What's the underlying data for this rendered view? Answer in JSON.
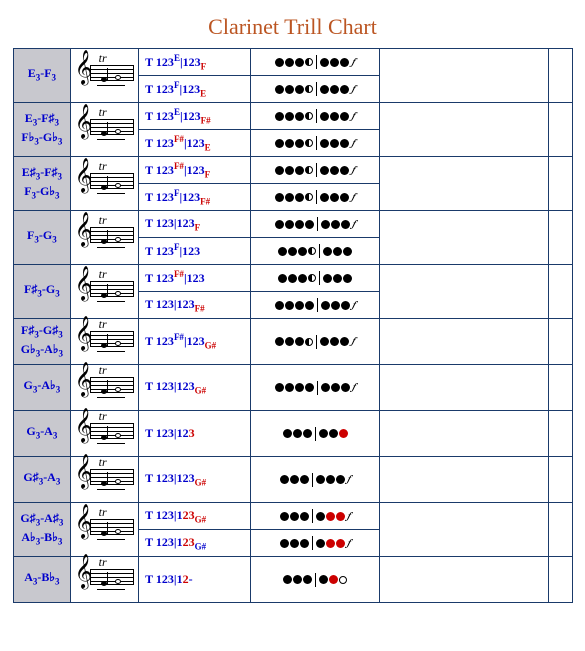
{
  "title": "Clarinet Trill Chart",
  "colors": {
    "title": "#bb5522",
    "border": "#1a3a6a",
    "label_bg": "#c8c8ce",
    "link_blue": "#0000cc",
    "red": "#cc0000",
    "black": "#000000"
  },
  "columns": [
    "note_label",
    "staff",
    "fingering_text",
    "fingering_diagram",
    "blank1",
    "blank2"
  ],
  "rows": [
    {
      "label_html": "E<sub>3</sub>-F<sub>3</sub>",
      "fingerings": [
        {
          "text_html": "T 123<sup>E</sup>|123<sub class='red'>F</sub>",
          "diagram": [
            "dot",
            "dot",
            "dot",
            "half",
            "sep",
            "dot",
            "dot",
            "dot",
            "extra"
          ]
        },
        {
          "text_html": "T 123<sup>F</sup>|123<sub class='red'>E</sub>",
          "diagram": [
            "dot",
            "dot",
            "dot",
            "half",
            "sep",
            "dot",
            "dot",
            "dot",
            "extra"
          ]
        }
      ]
    },
    {
      "label_html": "E<sub>3</sub>-F♯<sub>3</sub><br>F♭<sub>3</sub>-G♭<sub>3</sub>",
      "fingerings": [
        {
          "text_html": "T 123<sup>E</sup>|123<sub class='red'>F#</sub>",
          "diagram": [
            "dot",
            "dot",
            "dot",
            "half",
            "sep",
            "dot",
            "dot",
            "dot",
            "extra"
          ]
        },
        {
          "text_html": "T 123<sup class='red'>F#</sup>|123<sub class='red'>E</sub>",
          "diagram": [
            "dot",
            "dot",
            "dot",
            "half",
            "sep",
            "dot",
            "dot",
            "dot",
            "extra"
          ]
        }
      ]
    },
    {
      "label_html": "E♯<sub>3</sub>-F♯<sub>3</sub><br>F<sub>3</sub>-G♭<sub>3</sub>",
      "fingerings": [
        {
          "text_html": "T 123<sup class='red'>F#</sup>|123<sub class='red'>F</sub>",
          "diagram": [
            "dot",
            "dot",
            "dot",
            "half",
            "sep",
            "dot",
            "dot",
            "dot",
            "extra"
          ]
        },
        {
          "text_html": "T 123<sup>F</sup>|123<sub class='red'>F#</sub>",
          "diagram": [
            "dot",
            "dot",
            "dot",
            "half",
            "sep",
            "dot",
            "dot",
            "dot",
            "extra"
          ]
        }
      ]
    },
    {
      "label_html": "F<sub>3</sub>-G<sub>3</sub>",
      "fingerings": [
        {
          "text_html": "T 123|123<sub class='red'>F</sub>",
          "diagram": [
            "dot",
            "dot",
            "dot",
            "dot",
            "sep",
            "dot",
            "dot",
            "dot",
            "extra"
          ]
        },
        {
          "text_html": "T 123<sup>F</sup>|123",
          "diagram": [
            "dot",
            "dot",
            "dot",
            "half",
            "sep",
            "dot",
            "dot",
            "dot"
          ]
        }
      ]
    },
    {
      "label_html": "F♯<sub>3</sub>-G<sub>3</sub>",
      "fingerings": [
        {
          "text_html": "T 123<sup class='red'>F#</sup>|123",
          "diagram": [
            "dot",
            "dot",
            "dot",
            "half",
            "sep",
            "dot",
            "dot",
            "dot"
          ]
        },
        {
          "text_html": "T 123|123<sub class='red'>F#</sub>",
          "diagram": [
            "dot",
            "dot",
            "dot",
            "dot",
            "sep",
            "dot",
            "dot",
            "dot",
            "extra"
          ]
        }
      ]
    },
    {
      "label_html": "F♯<sub>3</sub>-G♯<sub>3</sub><br>G♭<sub>3</sub>-A♭<sub>3</sub>",
      "fingerings": [
        {
          "text_html": "T 123<sup>F#</sup>|123<sub class='red'>G#</sub>",
          "diagram": [
            "dot",
            "dot",
            "dot",
            "half",
            "sep",
            "dot",
            "dot",
            "dot",
            "extra"
          ]
        }
      ]
    },
    {
      "label_html": "G<sub>3</sub>-A♭<sub>3</sub>",
      "fingerings": [
        {
          "text_html": "T 123|123<sub class='red'>G#</sub>",
          "diagram": [
            "dot",
            "dot",
            "dot",
            "dot",
            "sep",
            "dot",
            "dot",
            "dot",
            "extra"
          ]
        }
      ]
    },
    {
      "label_html": "G<sub>3</sub>-A<sub>3</sub>",
      "fingerings": [
        {
          "text_html": "T 123|12<span class='red'>3</span>",
          "diagram": [
            "dot",
            "dot",
            "dot",
            "sep",
            "dot",
            "dot",
            "reddot"
          ]
        }
      ]
    },
    {
      "label_html": "G♯<sub>3</sub>-A<sub>3</sub>",
      "fingerings": [
        {
          "text_html": "T 123|123<sub class='red'>G#</sub>",
          "diagram": [
            "dot",
            "dot",
            "dot",
            "sep",
            "dot",
            "dot",
            "dot",
            "extra"
          ]
        }
      ]
    },
    {
      "label_html": "G♯<sub>3</sub>-A♯<sub>3</sub><br>A♭<sub>3</sub>-B♭<sub>3</sub>",
      "fingerings": [
        {
          "text_html": "T 123|1<span class='red'>23</span><sub class='red'>G#</sub>",
          "diagram": [
            "dot",
            "dot",
            "dot",
            "sep",
            "dot",
            "reddot",
            "reddot",
            "extra"
          ]
        },
        {
          "text_html": "T 123|1<span class='red'>23</span><sub>G#</sub>",
          "diagram": [
            "dot",
            "dot",
            "dot",
            "sep",
            "dot",
            "reddot",
            "reddot",
            "extra"
          ]
        }
      ]
    },
    {
      "label_html": "A<sub>3</sub>-B♭<sub>3</sub>",
      "fingerings": [
        {
          "text_html": "T 123|1<span class='red'>2</span>-",
          "diagram": [
            "dot",
            "dot",
            "dot",
            "sep",
            "dot",
            "reddot",
            "open"
          ]
        }
      ]
    }
  ]
}
